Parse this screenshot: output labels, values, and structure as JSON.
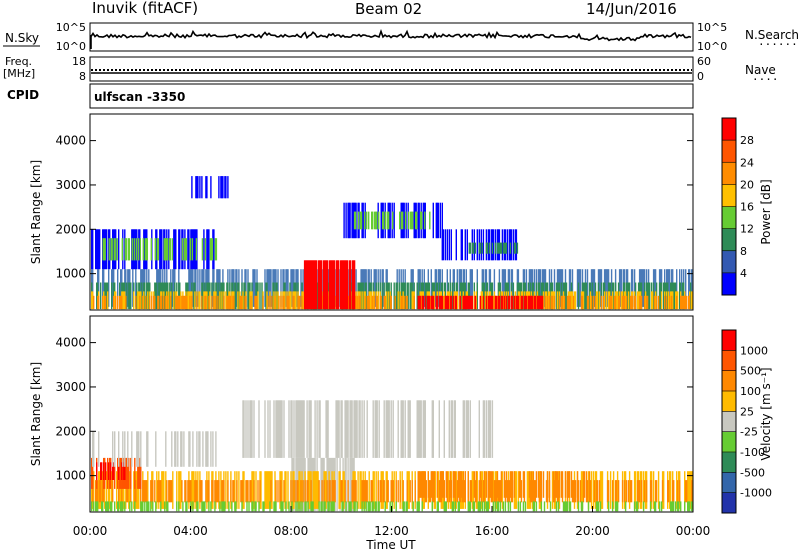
{
  "header": {
    "site": "Inuvik (fitACF)",
    "beam": "Beam 02",
    "date": "14/Jun/2016"
  },
  "noise_panel": {
    "left_label": "N.Sky",
    "right_label": "N.Search",
    "right_dots": "·······",
    "left_ticks": [
      "10^5",
      "10^0"
    ],
    "right_ticks": [
      "10^5",
      "10^0"
    ]
  },
  "freq_panel": {
    "left_label_1": "Freq.",
    "left_label_2": "[MHz]",
    "right_label": "Nave",
    "right_dots": "····",
    "left_ticks": [
      "18",
      "8"
    ],
    "right_ticks": [
      "60",
      "0"
    ]
  },
  "cpid": {
    "label": "CPID",
    "value": "ulfscan -3350"
  },
  "chart_data": [
    {
      "type": "heatmap",
      "name": "power",
      "ylabel": "Slant Range [km]",
      "yticks": [
        "1000",
        "2000",
        "3000",
        "4000"
      ],
      "ylim": [
        180,
        4600
      ],
      "xlim": [
        0,
        24
      ],
      "colorbar": {
        "label": "Power [dB]",
        "ticks": [
          "4",
          "8",
          "12",
          "16",
          "20",
          "24",
          "28"
        ],
        "colors": [
          "#0000ff",
          "#3359b2",
          "#2e8b57",
          "#66cc33",
          "#ffc000",
          "#ff8c00",
          "#ff5500",
          "#ff0000"
        ]
      }
    },
    {
      "type": "heatmap",
      "name": "velocity",
      "ylabel": "Slant Range [km]",
      "yticks": [
        "1000",
        "2000",
        "3000",
        "4000"
      ],
      "ylim": [
        180,
        4600
      ],
      "xlim": [
        0,
        24
      ],
      "xlabel": "Time UT",
      "xticks": [
        "00:00",
        "04:00",
        "08:00",
        "12:00",
        "16:00",
        "20:00",
        "00:00"
      ],
      "colorbar": {
        "label": "Velocity [m s⁻¹]",
        "ticks": [
          "1000",
          "500",
          "100",
          "25",
          "-25",
          "-100",
          "-500",
          "-1000"
        ],
        "colors": [
          "#2233aa",
          "#3366aa",
          "#2e8b57",
          "#66cc33",
          "#c8c8c0",
          "#ffbb00",
          "#ff8800",
          "#ff5500",
          "#ff0000"
        ]
      }
    }
  ]
}
